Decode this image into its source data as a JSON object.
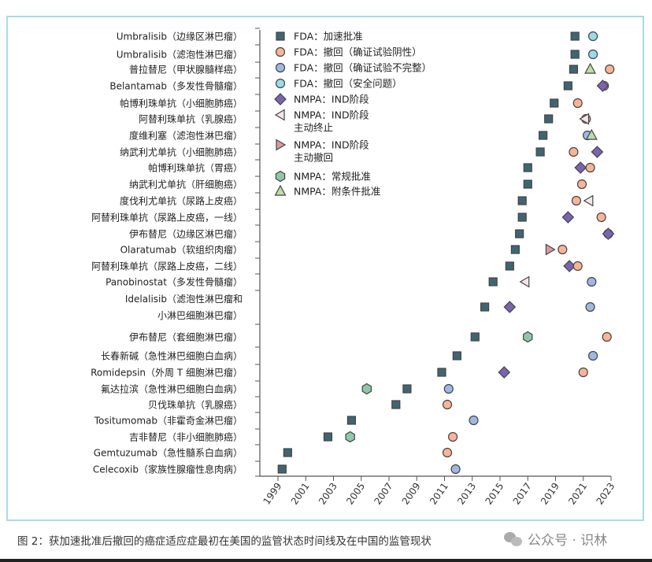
{
  "chart_data": {
    "type": "scatter",
    "title": "",
    "xlabel": "",
    "ylabel": "",
    "xlim": [
      1999,
      2023
    ],
    "xticks": [
      "1999",
      "2001",
      "2003",
      "2005",
      "2007",
      "2009",
      "2011",
      "2013",
      "2015",
      "2017",
      "2019",
      "2021",
      "2023"
    ],
    "legend_position": "top-left",
    "markers": {
      "fda_accel": {
        "label": [
          "FDA：加速批准"
        ],
        "shape": "square",
        "color": "#3e6672"
      },
      "fda_wd_neg": {
        "label": [
          "FDA：撤回（确证试验阴性）"
        ],
        "shape": "circle",
        "color": "#f7b497"
      },
      "fda_wd_incomplete": {
        "label": [
          "FDA：撤回（确证试验不完整）"
        ],
        "shape": "circle",
        "color": "#9db8e2"
      },
      "fda_wd_safety": {
        "label": [
          "FDA：撤回（安全问题）"
        ],
        "shape": "circle",
        "color": "#97dcea"
      },
      "nmpa_ind": {
        "label": [
          "NMPA：IND阶段"
        ],
        "shape": "diamond",
        "color": "#7b63b0"
      },
      "nmpa_ind_term": {
        "label": [
          "NMPA：IND阶段",
          "主动终止"
        ],
        "shape": "tri-left",
        "color": "#f6e4e8"
      },
      "nmpa_ind_withdraw": {
        "label": [
          "NMPA：IND阶段",
          "主动撤回"
        ],
        "shape": "tri-right",
        "color": "#d99aa0"
      },
      "nmpa_regular": {
        "label": [
          "NMPA：常规批准"
        ],
        "shape": "hexagon",
        "color": "#8fc7a9"
      },
      "nmpa_conditional": {
        "label": [
          "NMPA：附条件批准"
        ],
        "shape": "tri-up",
        "color": "#bcdcaa"
      }
    },
    "legend_order": [
      "fda_accel",
      "fda_wd_neg",
      "fda_wd_incomplete",
      "fda_wd_safety",
      "nmpa_ind",
      "nmpa_ind_term",
      "nmpa_ind_withdraw",
      "nmpa_regular",
      "nmpa_conditional"
    ],
    "rows": [
      {
        "label": [
          "Umbralisib（边缘区淋巴瘤）"
        ],
        "points": [
          [
            "fda_accel",
            2020.4
          ],
          [
            "fda_wd_safety",
            2021.7
          ]
        ]
      },
      {
        "label": [
          "Umbralisib（滤泡性淋巴瘤）"
        ],
        "points": [
          [
            "fda_accel",
            2020.4
          ],
          [
            "fda_wd_safety",
            2021.7
          ]
        ]
      },
      {
        "label": [
          "普拉替尼（甲状腺髓样癌）"
        ],
        "points": [
          [
            "fda_accel",
            2020.3
          ],
          [
            "nmpa_conditional",
            2021.5
          ],
          [
            "fda_wd_neg",
            2022.9
          ]
        ]
      },
      {
        "label": [
          "Belantamab（多发性骨髓瘤）"
        ],
        "points": [
          [
            "fda_accel",
            2019.9
          ],
          [
            "fda_wd_neg",
            2022.5
          ],
          [
            "nmpa_ind",
            2022.4
          ]
        ]
      },
      {
        "label": [
          "帕博利珠单抗（小细胞肺癌）"
        ],
        "points": [
          [
            "fda_accel",
            2018.9
          ],
          [
            "fda_wd_neg",
            2020.6
          ]
        ]
      },
      {
        "label": [
          "阿替利珠单抗（乳腺癌）"
        ],
        "points": [
          [
            "fda_accel",
            2018.5
          ],
          [
            "fda_wd_neg",
            2021.2
          ],
          [
            "nmpa_ind_term",
            2021.1
          ]
        ]
      },
      {
        "label": [
          "度维利塞（滤泡性淋巴瘤）"
        ],
        "points": [
          [
            "fda_accel",
            2018.1
          ],
          [
            "fda_wd_incomplete",
            2021.3
          ],
          [
            "nmpa_conditional",
            2021.6
          ]
        ]
      },
      {
        "label": [
          "纳武利尤单抗（小细胞肺癌）"
        ],
        "points": [
          [
            "fda_accel",
            2017.9
          ],
          [
            "fda_wd_neg",
            2020.3
          ],
          [
            "nmpa_ind",
            2022.0
          ]
        ]
      },
      {
        "label": [
          "帕博利珠单抗（胃癌）"
        ],
        "points": [
          [
            "fda_accel",
            2017.0
          ],
          [
            "nmpa_ind",
            2020.8
          ],
          [
            "fda_wd_neg",
            2021.5
          ]
        ]
      },
      {
        "label": [
          "纳武利尤单抗（肝细胞癌）"
        ],
        "points": [
          [
            "fda_accel",
            2017.0
          ],
          [
            "fda_wd_neg",
            2020.9
          ]
        ]
      },
      {
        "label": [
          "度伐利尤单抗（尿路上皮癌）"
        ],
        "points": [
          [
            "fda_accel",
            2016.6
          ],
          [
            "fda_wd_neg",
            2020.5
          ],
          [
            "nmpa_ind_term",
            2021.4
          ]
        ]
      },
      {
        "label": [
          "阿替利珠单抗（尿路上皮癌，一线）"
        ],
        "points": [
          [
            "fda_accel",
            2016.6
          ],
          [
            "nmpa_ind",
            2019.9
          ],
          [
            "fda_wd_neg",
            2022.3
          ]
        ]
      },
      {
        "label": [
          "伊布替尼（边缘区淋巴瘤）"
        ],
        "points": [
          [
            "fda_accel",
            2016.4
          ],
          [
            "fda_wd_neg",
            2022.8
          ],
          [
            "nmpa_ind",
            2022.8
          ]
        ]
      },
      {
        "label": [
          "Olaratumab（软组织肉瘤）"
        ],
        "points": [
          [
            "fda_accel",
            2016.1
          ],
          [
            "nmpa_ind_withdraw",
            2018.6
          ],
          [
            "fda_wd_neg",
            2019.5
          ]
        ]
      },
      {
        "label": [
          "阿替利珠单抗（尿路上皮癌，二线）"
        ],
        "points": [
          [
            "fda_accel",
            2015.7
          ],
          [
            "nmpa_ind",
            2020.0
          ],
          [
            "fda_wd_neg",
            2020.6
          ]
        ]
      },
      {
        "label": [
          "Panobinostat（多发性骨髓瘤）"
        ],
        "points": [
          [
            "fda_accel",
            2014.5
          ],
          [
            "nmpa_ind_term",
            2016.8
          ],
          [
            "fda_wd_incomplete",
            2021.6
          ]
        ]
      },
      {
        "label": [
          "Idelalisib（滤泡性淋巴瘤和",
          "小淋巴细胞淋巴瘤）"
        ],
        "points": [
          [
            "fda_accel",
            2013.9
          ],
          [
            "nmpa_ind",
            2015.7
          ],
          [
            "fda_wd_incomplete",
            2021.5
          ]
        ]
      },
      {
        "label": [
          "伊布替尼（套细胞淋巴瘤）"
        ],
        "points": [
          [
            "fda_accel",
            2013.2
          ],
          [
            "nmpa_regular",
            2017.0
          ],
          [
            "fda_wd_neg",
            2022.7
          ]
        ]
      },
      {
        "label": [
          "长春新碱（急性淋巴细胞白血病）"
        ],
        "points": [
          [
            "fda_accel",
            2011.9
          ],
          [
            "fda_wd_incomplete",
            2021.7
          ]
        ]
      },
      {
        "label": [
          "Romidepsin（外周 T 细胞淋巴瘤）"
        ],
        "points": [
          [
            "fda_accel",
            2010.8
          ],
          [
            "nmpa_ind",
            2015.3
          ],
          [
            "fda_wd_neg",
            2021.0
          ]
        ]
      },
      {
        "label": [
          "氟达拉滨（急性淋巴细胞白血病）"
        ],
        "points": [
          [
            "nmpa_regular",
            2005.4
          ],
          [
            "fda_accel",
            2008.3
          ],
          [
            "fda_wd_incomplete",
            2011.3
          ]
        ]
      },
      {
        "label": [
          "贝伐珠单抗（乳腺癌）"
        ],
        "points": [
          [
            "fda_accel",
            2007.5
          ],
          [
            "fda_wd_neg",
            2011.2
          ]
        ]
      },
      {
        "label": [
          "Tositumomab（非霍奇金淋巴瘤）"
        ],
        "points": [
          [
            "fda_accel",
            2004.3
          ],
          [
            "fda_wd_incomplete",
            2013.1
          ]
        ]
      },
      {
        "label": [
          "吉非替尼（非小细胞肺癌）"
        ],
        "points": [
          [
            "fda_accel",
            2002.6
          ],
          [
            "nmpa_regular",
            2004.2
          ],
          [
            "fda_wd_neg",
            2011.6
          ]
        ]
      },
      {
        "label": [
          "Gemtuzumab（急性髓系白血病）"
        ],
        "points": [
          [
            "fda_accel",
            1999.7
          ],
          [
            "fda_wd_neg",
            2011.2
          ]
        ]
      },
      {
        "label": [
          "Celecoxib（家族性腺瘤性息肉病）"
        ],
        "points": [
          [
            "fda_accel",
            1999.3
          ],
          [
            "fda_wd_incomplete",
            2011.8
          ]
        ]
      }
    ]
  },
  "caption": "图 2：获加速批准后撤回的癌症适应症最初在美国的监管状态时间线及在中国的监管现状",
  "watermark": "公众号 · 识林"
}
